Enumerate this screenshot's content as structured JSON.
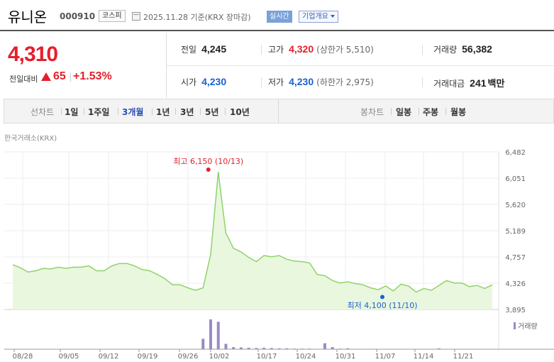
{
  "header": {
    "stock_name": "유니온",
    "stock_code": "000910",
    "market": "코스피",
    "date_text": "2025.11.28 기준(KRX 장마감)",
    "realtime_label": "실시간",
    "overview_label": "기업개요"
  },
  "quote": {
    "price": "4,310",
    "prev_label": "전일대비",
    "change": "65",
    "change_rate": "+1.53%",
    "prev_close_label": "전일",
    "prev_close": "4,245",
    "high_label": "고가",
    "high": "4,320",
    "upper_limit_text": "(상한가 5,510)",
    "volume_label": "거래량",
    "volume": "56,382",
    "open_label": "시가",
    "open": "4,230",
    "low_label": "저가",
    "low": "4,230",
    "lower_limit_text": "(하한가 2,975)",
    "trade_value_label": "거래대금",
    "trade_value": "241",
    "trade_value_unit": "백만"
  },
  "tabs": {
    "line_chart_label": "선차트",
    "periods": [
      "1일",
      "1주일",
      "3개월",
      "1년",
      "3년",
      "5년",
      "10년"
    ],
    "active_period": "3개월",
    "candle_chart_label": "봉차트",
    "candle_periods": [
      "일봉",
      "주봉",
      "월봉"
    ]
  },
  "chart_data": {
    "type": "area",
    "exchange_label": "한국거래소(KRX)",
    "y_ticks": [
      "6,482",
      "6,051",
      "5,620",
      "5,189",
      "4,757",
      "4,326",
      "3,895"
    ],
    "ylim": [
      3895,
      6482
    ],
    "x_tick_labels": [
      "08/28",
      "09/05",
      "09/12",
      "09/19",
      "09/26",
      "10/02",
      "10/17",
      "10/24",
      "10/31",
      "11/07",
      "11/14",
      "11/21"
    ],
    "price_series": [
      4630,
      4580,
      4510,
      4530,
      4570,
      4560,
      4590,
      4570,
      4590,
      4590,
      4610,
      4530,
      4530,
      4610,
      4650,
      4650,
      4610,
      4550,
      4530,
      4470,
      4400,
      4300,
      4300,
      4250,
      4210,
      4250,
      4800,
      6150,
      5150,
      4900,
      4840,
      4750,
      4680,
      4780,
      4760,
      4780,
      4720,
      4690,
      4680,
      4660,
      4470,
      4450,
      4370,
      4330,
      4350,
      4320,
      4300,
      4250,
      4220,
      4280,
      4200,
      4310,
      4280,
      4180,
      4240,
      4210,
      4290,
      4370,
      4330,
      4330,
      4270,
      4290,
      4240,
      4300
    ],
    "volume_series": [
      0,
      0,
      0,
      0,
      0,
      0,
      0,
      0,
      0,
      0,
      0,
      0,
      0,
      0,
      0,
      0,
      0,
      0,
      0,
      0,
      0,
      0,
      0,
      0,
      0,
      35,
      100,
      92,
      18,
      7,
      6,
      5,
      4,
      5,
      4,
      3,
      3,
      2,
      2,
      2,
      0,
      20,
      7,
      2,
      3,
      0,
      0,
      0,
      0,
      0,
      0,
      0,
      0,
      0,
      0,
      0,
      3,
      0,
      0,
      0,
      0,
      0,
      0,
      0
    ],
    "high_annotation": "최고 6,150 (10/13)",
    "low_annotation": "최저 4,100 (11/10)",
    "high_value": 6150,
    "low_value": 4100,
    "volume_legend": "거래량",
    "colors": {
      "line": "#8fd36a",
      "fill": "#e9f7df",
      "volume": "#9a8ac8",
      "high": "#e4202c",
      "low": "#1b61d1"
    }
  }
}
